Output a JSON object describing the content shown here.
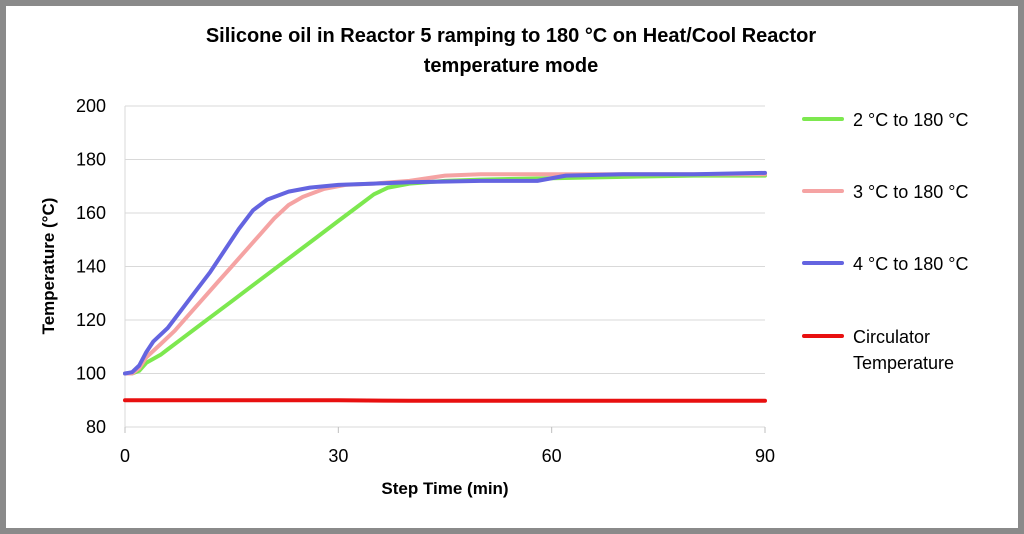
{
  "chart_data": {
    "type": "line",
    "title_lines": [
      "Silicone oil in Reactor 5 ramping to 180 °C on Heat/Cool Reactor",
      "temperature mode"
    ],
    "xlabel": "Step Time (min)",
    "ylabel": "Temperature (°C)",
    "xlim": [
      0,
      90
    ],
    "ylim": [
      80,
      200
    ],
    "x_ticks": [
      0,
      30,
      60,
      90
    ],
    "y_ticks": [
      80,
      100,
      120,
      140,
      160,
      180,
      200
    ],
    "y_grid": true,
    "legend_position": "right",
    "series": [
      {
        "name": "2 °C to 180 °C",
        "color": "#7de84f",
        "points": [
          [
            0,
            100
          ],
          [
            1,
            100
          ],
          [
            2,
            101
          ],
          [
            3,
            104
          ],
          [
            5,
            107
          ],
          [
            6,
            109
          ],
          [
            8,
            113
          ],
          [
            10,
            117
          ],
          [
            12,
            121
          ],
          [
            15,
            127
          ],
          [
            18,
            133
          ],
          [
            21,
            139
          ],
          [
            24,
            145
          ],
          [
            27,
            151
          ],
          [
            30,
            157
          ],
          [
            33,
            163
          ],
          [
            35,
            167
          ],
          [
            37,
            169.5
          ],
          [
            40,
            171
          ],
          [
            45,
            172
          ],
          [
            50,
            172.5
          ],
          [
            60,
            173
          ],
          [
            70,
            173.5
          ],
          [
            80,
            174
          ],
          [
            90,
            174
          ]
        ]
      },
      {
        "name": "3 °C to 180 °C",
        "color": "#f5a3a3",
        "points": [
          [
            0,
            100
          ],
          [
            1,
            100
          ],
          [
            2,
            102
          ],
          [
            3,
            106
          ],
          [
            5,
            111
          ],
          [
            7,
            116
          ],
          [
            9,
            122
          ],
          [
            11,
            128
          ],
          [
            13,
            134
          ],
          [
            15,
            140
          ],
          [
            17,
            146
          ],
          [
            19,
            152
          ],
          [
            21,
            158
          ],
          [
            23,
            163
          ],
          [
            25,
            166
          ],
          [
            28,
            169
          ],
          [
            31,
            170.5
          ],
          [
            35,
            171
          ],
          [
            40,
            172
          ],
          [
            45,
            174
          ],
          [
            50,
            174.5
          ],
          [
            60,
            174.5
          ],
          [
            70,
            174.5
          ],
          [
            80,
            174.5
          ],
          [
            90,
            174.5
          ]
        ]
      },
      {
        "name": "4 °C to 180 °C",
        "color": "#6464e0",
        "points": [
          [
            0,
            100
          ],
          [
            1,
            100.5
          ],
          [
            2,
            103
          ],
          [
            3,
            108
          ],
          [
            4,
            112
          ],
          [
            6,
            117
          ],
          [
            8,
            124
          ],
          [
            10,
            131
          ],
          [
            12,
            138
          ],
          [
            14,
            146
          ],
          [
            16,
            154
          ],
          [
            18,
            161
          ],
          [
            20,
            165
          ],
          [
            23,
            168
          ],
          [
            26,
            169.5
          ],
          [
            30,
            170.5
          ],
          [
            35,
            171
          ],
          [
            40,
            171.5
          ],
          [
            50,
            172
          ],
          [
            55,
            172
          ],
          [
            58,
            172
          ],
          [
            62,
            174
          ],
          [
            70,
            174.5
          ],
          [
            80,
            174.5
          ],
          [
            90,
            175
          ]
        ]
      },
      {
        "name": "Circulator Temperature",
        "color": "#e81010",
        "points": [
          [
            0,
            90
          ],
          [
            10,
            90
          ],
          [
            20,
            90
          ],
          [
            30,
            90
          ],
          [
            40,
            89.8
          ],
          [
            50,
            89.8
          ],
          [
            60,
            89.8
          ],
          [
            70,
            89.8
          ],
          [
            80,
            89.8
          ],
          [
            90,
            89.8
          ]
        ]
      }
    ]
  },
  "legend": {
    "items": [
      {
        "lines": [
          "2 °C to 180 °C"
        ],
        "color": "#7de84f"
      },
      {
        "lines": [
          "3 °C to 180 °C"
        ],
        "color": "#f5a3a3"
      },
      {
        "lines": [
          "4 °C to 180 °C"
        ],
        "color": "#6464e0"
      },
      {
        "lines": [
          "Circulator",
          "Temperature"
        ],
        "color": "#e81010"
      }
    ]
  }
}
